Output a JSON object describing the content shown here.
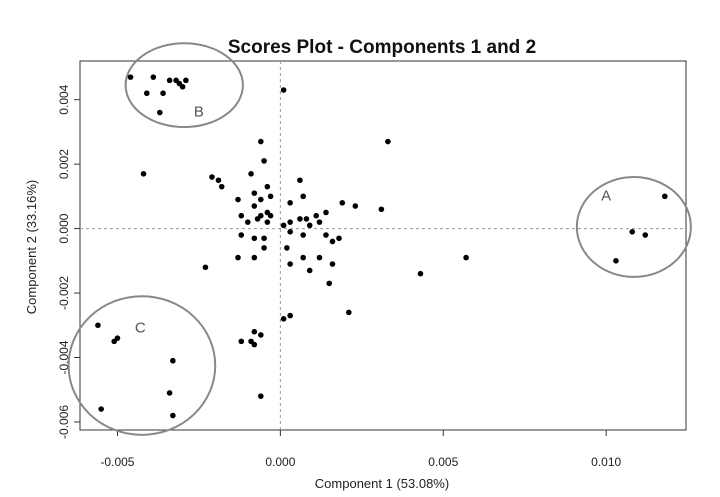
{
  "chart_data": {
    "type": "scatter",
    "title": "Scores Plot - Components 1 and 2",
    "xlabel": "Component 1 (53.08%)",
    "ylabel": "Component 2 (33.16%)",
    "xlim": [
      -0.00615,
      0.01245
    ],
    "ylim": [
      -0.00625,
      0.0052
    ],
    "xticks": [
      -0.005,
      0.0,
      0.005,
      0.01
    ],
    "xtick_labels": [
      "-0.005",
      "0.000",
      "0.005",
      "0.010"
    ],
    "yticks": [
      -0.006,
      -0.004,
      -0.002,
      0.0,
      0.002,
      0.004
    ],
    "ytick_labels": [
      "-0.006",
      "-0.004",
      "-0.002",
      "0.000",
      "0.002",
      "0.004"
    ],
    "reference_lines": {
      "x": 0.0,
      "y": 0.0,
      "style": "dashed"
    },
    "grid": false,
    "clusters": [
      {
        "label": "A",
        "center": [
          0.01085,
          5e-05
        ],
        "radii": [
          0.00175,
          0.00155
        ],
        "label_pos": [
          0.01,
          0.001
        ]
      },
      {
        "label": "B",
        "center": [
          -0.00295,
          0.00445
        ],
        "radii": [
          0.0018,
          0.0013
        ],
        "label_pos": [
          -0.0025,
          0.0036
        ]
      },
      {
        "label": "C",
        "center": [
          -0.00425,
          -0.00425
        ],
        "radii": [
          0.00225,
          0.00215
        ],
        "label_pos": [
          -0.0043,
          -0.0031
        ]
      }
    ],
    "points": [
      [
        -0.0046,
        0.0047
      ],
      [
        -0.0041,
        0.0042
      ],
      [
        -0.0039,
        0.0047
      ],
      [
        -0.0036,
        0.0042
      ],
      [
        -0.0034,
        0.0046
      ],
      [
        -0.0032,
        0.0046
      ],
      [
        -0.0031,
        0.0045
      ],
      [
        -0.003,
        0.0044
      ],
      [
        -0.0029,
        0.0046
      ],
      [
        -0.0037,
        0.0036
      ],
      [
        0.0001,
        0.0043
      ],
      [
        -0.0042,
        0.0017
      ],
      [
        -0.0021,
        0.0016
      ],
      [
        -0.0019,
        0.0015
      ],
      [
        -0.0018,
        0.0013
      ],
      [
        -0.0006,
        0.0027
      ],
      [
        -0.0005,
        0.0021
      ],
      [
        -0.0009,
        0.0017
      ],
      [
        -0.0004,
        0.0013
      ],
      [
        -0.0008,
        0.0011
      ],
      [
        -0.0013,
        0.0009
      ],
      [
        -0.0006,
        0.0009
      ],
      [
        -0.0003,
        0.001
      ],
      [
        0.0006,
        0.0015
      ],
      [
        0.0003,
        0.0008
      ],
      [
        0.0007,
        0.001
      ],
      [
        -0.0008,
        0.0007
      ],
      [
        -0.0006,
        0.0004
      ],
      [
        -0.0004,
        0.0005
      ],
      [
        -0.0003,
        0.0004
      ],
      [
        -0.0007,
        0.0003
      ],
      [
        -0.0012,
        0.0004
      ],
      [
        -0.001,
        0.0002
      ],
      [
        -0.0004,
        0.0002
      ],
      [
        0.0001,
        0.0001
      ],
      [
        0.0003,
        0.0002
      ],
      [
        0.0006,
        0.0003
      ],
      [
        0.0008,
        0.0003
      ],
      [
        0.0011,
        0.0004
      ],
      [
        0.0014,
        0.0005
      ],
      [
        0.0012,
        0.0002
      ],
      [
        0.0009,
        0.0001
      ],
      [
        0.0019,
        0.0008
      ],
      [
        0.0023,
        0.0007
      ],
      [
        0.0031,
        0.0006
      ],
      [
        0.0033,
        0.0027
      ],
      [
        -0.0012,
        -0.0002
      ],
      [
        -0.0008,
        -0.0003
      ],
      [
        -0.0005,
        -0.0003
      ],
      [
        0.0003,
        -0.0001
      ],
      [
        0.0007,
        -0.0002
      ],
      [
        0.0014,
        -0.0002
      ],
      [
        0.0016,
        -0.0004
      ],
      [
        0.0018,
        -0.0003
      ],
      [
        0.0002,
        -0.0006
      ],
      [
        -0.0005,
        -0.0006
      ],
      [
        -0.0008,
        -0.0009
      ],
      [
        -0.0013,
        -0.0009
      ],
      [
        -0.0023,
        -0.0012
      ],
      [
        0.0007,
        -0.0009
      ],
      [
        0.0012,
        -0.0009
      ],
      [
        0.0016,
        -0.0011
      ],
      [
        0.0003,
        -0.0011
      ],
      [
        0.0009,
        -0.0013
      ],
      [
        0.0015,
        -0.0017
      ],
      [
        0.0043,
        -0.0014
      ],
      [
        0.0057,
        -0.0009
      ],
      [
        0.0021,
        -0.0026
      ],
      [
        0.0003,
        -0.0027
      ],
      [
        0.0001,
        -0.0028
      ],
      [
        -0.0008,
        -0.0032
      ],
      [
        -0.0012,
        -0.0035
      ],
      [
        -0.0009,
        -0.0035
      ],
      [
        -0.0008,
        -0.0036
      ],
      [
        -0.0006,
        -0.0033
      ],
      [
        -0.0006,
        -0.0052
      ],
      [
        -0.0056,
        -0.003
      ],
      [
        -0.0051,
        -0.0035
      ],
      [
        -0.005,
        -0.0034
      ],
      [
        -0.0033,
        -0.0041
      ],
      [
        -0.0034,
        -0.0051
      ],
      [
        -0.0033,
        -0.0058
      ],
      [
        -0.0055,
        -0.0056
      ],
      [
        0.0118,
        0.001
      ],
      [
        0.0108,
        -0.0001
      ],
      [
        0.0112,
        -0.0002
      ],
      [
        0.0103,
        -0.001
      ]
    ]
  }
}
